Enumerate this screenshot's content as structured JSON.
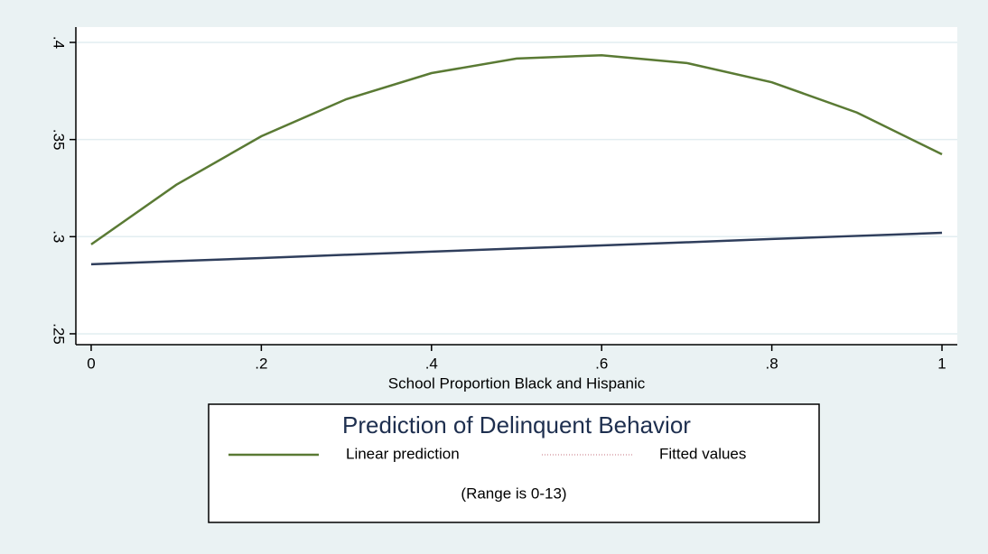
{
  "chart_data": {
    "type": "line",
    "x_label": "School Proportion Black and Hispanic",
    "legend_title": "Prediction of Delinquent Behavior",
    "note": "(Range is 0-13)",
    "x": [
      0,
      0.1,
      0.2,
      0.3,
      0.4,
      0.5,
      0.6,
      0.7,
      0.8,
      0.9,
      1
    ],
    "series": [
      {
        "name": "Linear prediction",
        "color": "#5a7a34",
        "legend_color": "#5a7a34",
        "values": [
          0.296,
          0.3267,
          0.3517,
          0.3708,
          0.3842,
          0.3917,
          0.3934,
          0.3894,
          0.3795,
          0.3639,
          0.3424
        ]
      },
      {
        "name": "Fitted values",
        "color": "#2f3e5c",
        "legend_color": "#d8a0a8",
        "legend_dotted": true,
        "values": [
          0.2858,
          0.2874,
          0.289,
          0.2907,
          0.2923,
          0.2939,
          0.2955,
          0.2971,
          0.2988,
          0.3004,
          0.302
        ]
      }
    ],
    "xlim": [
      -0.018,
      1.018
    ],
    "ylim": [
      0.2444,
      0.4079
    ],
    "xticks": [
      0,
      {
        "value": 0.2,
        "label": ".2"
      },
      {
        "value": 0.4,
        "label": ".4"
      },
      {
        "value": 0.6,
        "label": ".6"
      },
      {
        "value": 0.8,
        "label": ".8"
      },
      1
    ],
    "yticks": [
      {
        "value": 0.25,
        "label": ".25"
      },
      {
        "value": 0.3,
        "label": ".3"
      },
      {
        "value": 0.35,
        "label": ".35"
      },
      {
        "value": 0.4,
        "label": ".4"
      }
    ],
    "grid": true
  }
}
